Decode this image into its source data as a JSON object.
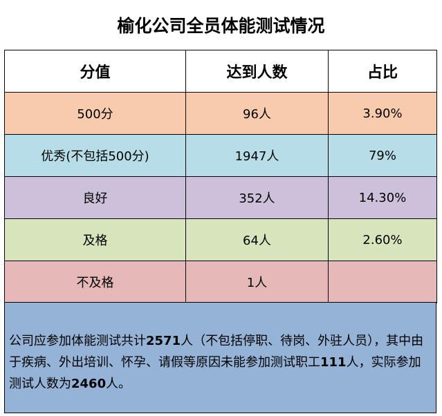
{
  "title": "榆化公司全员体能测试情况",
  "table": {
    "header": [
      "分值",
      "达到人数",
      "占比"
    ],
    "rows": [
      [
        "500分",
        "96人",
        "3.90%"
      ],
      [
        "优秀(不包括500分)",
        "1947人",
        "79%"
      ],
      [
        "良好",
        "352人",
        "14.30%"
      ],
      [
        "及格",
        "64人",
        "2.60%"
      ],
      [
        "不及格",
        "1人"
      ]
    ]
  },
  "note": [
    "公司应参加体能测试共计",
    "2571",
    "人（不包括停职、待岗、外驻人员），其中由于疾病、外出培训、怀孕、请假等原因未能参加测试职工",
    "111",
    "人，实际参加测试人数为",
    "2460",
    "人。"
  ]
}
